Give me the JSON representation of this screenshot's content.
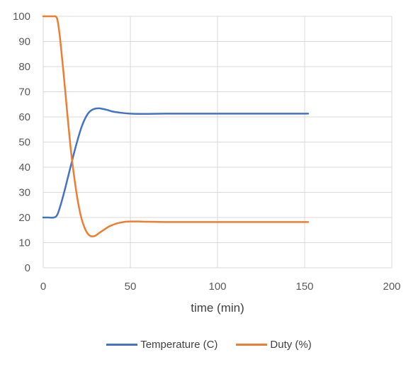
{
  "chart_data": {
    "type": "line",
    "title": "",
    "xlabel": "time (min)",
    "ylabel": "",
    "xlim": [
      0,
      200
    ],
    "ylim": [
      0,
      100
    ],
    "xticks": [
      0,
      50,
      100,
      150,
      200
    ],
    "yticks": [
      0,
      10,
      20,
      30,
      40,
      50,
      60,
      70,
      80,
      90,
      100
    ],
    "grid": true,
    "legend_position": "bottom",
    "series": [
      {
        "name": "Temperature (C)",
        "color": "#4472C4",
        "x": [
          0,
          3,
          6,
          8,
          10,
          12,
          14,
          16,
          18,
          20,
          22,
          24,
          26,
          28,
          30,
          32,
          34,
          36,
          38,
          40,
          45,
          50,
          55,
          60,
          70,
          80,
          100,
          120,
          140,
          152
        ],
        "y": [
          20,
          20,
          20,
          21,
          25,
          30,
          35.5,
          41,
          46.5,
          51.5,
          56,
          59.3,
          61.6,
          62.8,
          63.3,
          63.4,
          63.2,
          62.9,
          62.5,
          62.1,
          61.6,
          61.3,
          61.2,
          61.2,
          61.3,
          61.3,
          61.3,
          61.3,
          61.3,
          61.3
        ]
      },
      {
        "name": "Duty (%)",
        "color": "#ED7D31",
        "x": [
          0,
          3,
          6,
          7,
          8,
          9,
          10,
          12,
          14,
          16,
          18,
          20,
          22,
          24,
          26,
          28,
          30,
          32,
          35,
          38,
          42,
          46,
          50,
          55,
          60,
          70,
          80,
          100,
          120,
          140,
          152
        ],
        "y": [
          100,
          100,
          100,
          100,
          99,
          95,
          89,
          75,
          60,
          46,
          35,
          26,
          19.5,
          15.5,
          13.2,
          12.5,
          12.8,
          13.8,
          15.2,
          16.5,
          17.6,
          18.2,
          18.4,
          18.4,
          18.3,
          18.2,
          18.2,
          18.2,
          18.2,
          18.2,
          18.2
        ]
      }
    ]
  }
}
